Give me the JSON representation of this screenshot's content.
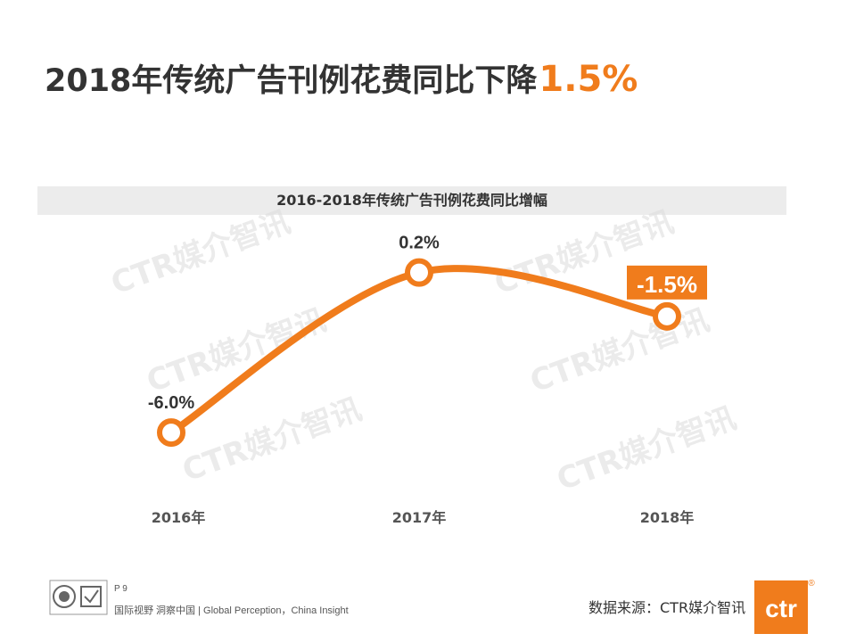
{
  "page": {
    "title_main": "2018年传统广告刊例花费同比下降",
    "title_highlight": "1.5%",
    "page_label": "P 9",
    "slogan": "国际视野  洞察中国 |  Global Perception，China Insight",
    "source": "数据来源：CTR媒介智讯",
    "logo_text": "ctr",
    "logo_mark": "®",
    "watermark": "CTR媒介智讯"
  },
  "chart_data": {
    "type": "line",
    "title": "2016-2018年传统广告刊例花费同比增幅",
    "categories": [
      "2016年",
      "2017年",
      "2018年"
    ],
    "values": [
      -6.0,
      0.2,
      -1.5
    ],
    "data_labels": [
      "-6.0%",
      "0.2%",
      "-1.5%"
    ],
    "highlight_index": 2,
    "ylim": [
      -8,
      1.5
    ],
    "xlabel": "",
    "ylabel": "",
    "grid": false,
    "colors": {
      "line": "#f07c1c",
      "highlight_bg": "#f07c1c",
      "text": "#333333",
      "axis_label": "#555555"
    }
  }
}
